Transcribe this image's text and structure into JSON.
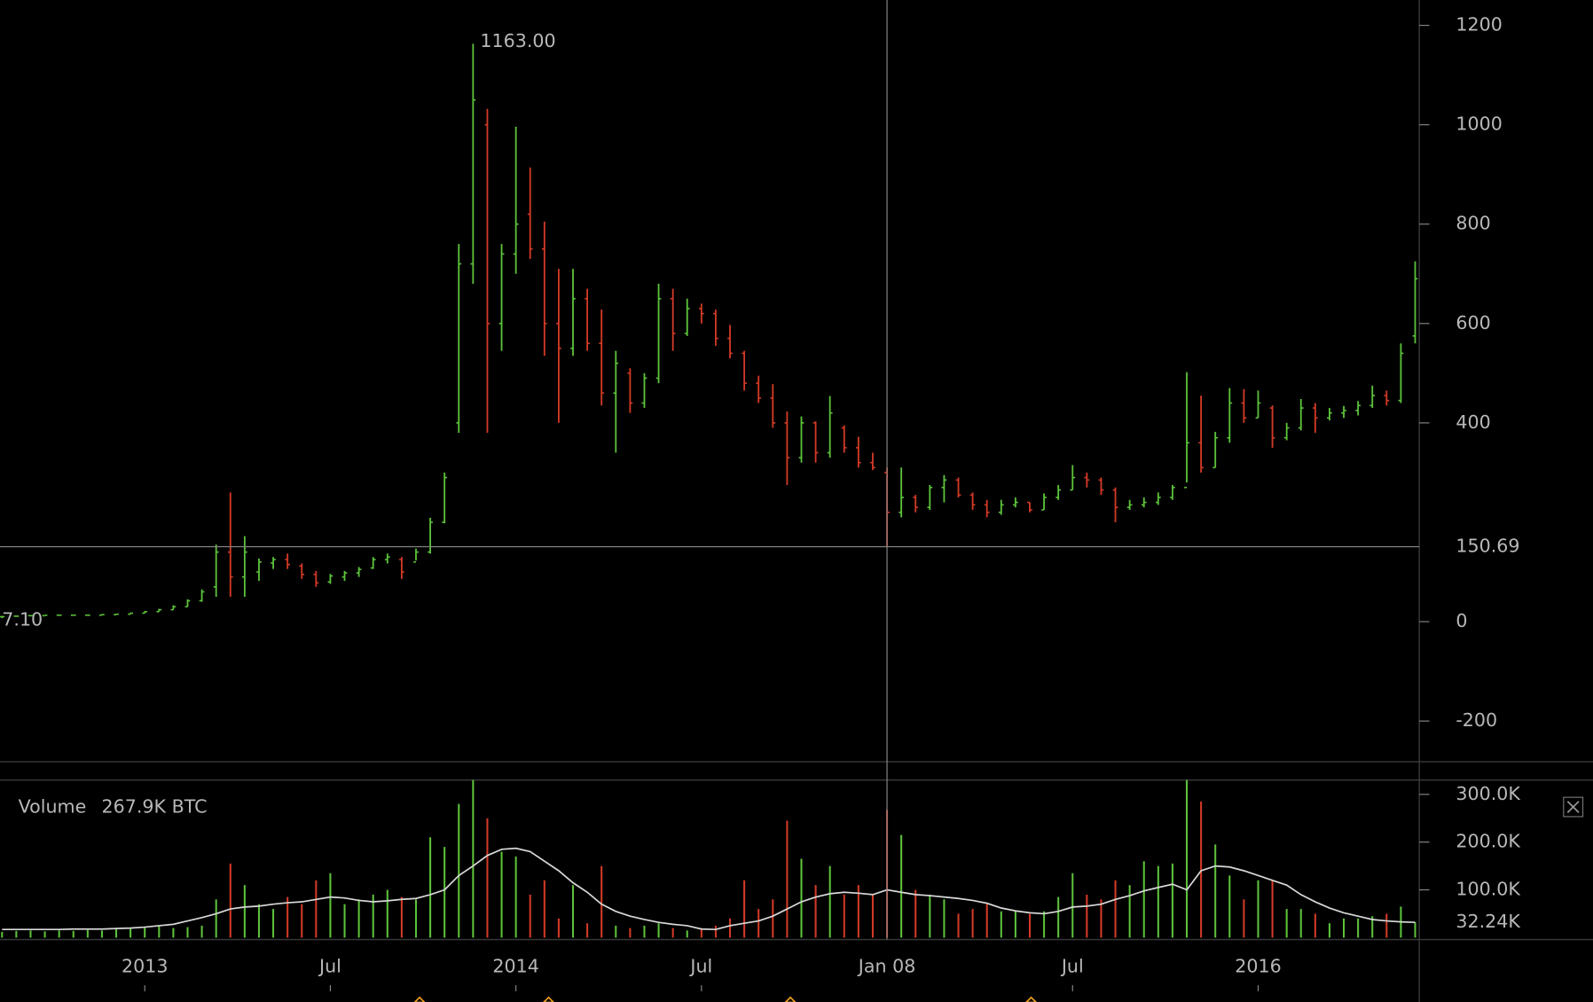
{
  "chart_data": {
    "type": "ohlc",
    "categories": [
      null,
      null,
      null,
      null,
      null,
      null,
      null,
      null,
      null,
      null,
      "2013",
      null,
      null,
      null,
      null,
      null,
      null,
      null,
      null,
      null,
      null,
      null,
      null,
      "Jul",
      null,
      null,
      null,
      null,
      null,
      null,
      null,
      null,
      null,
      null,
      null,
      null,
      "2014",
      null,
      null,
      null,
      null,
      null,
      null,
      null,
      null,
      null,
      null,
      null,
      null,
      "Jul",
      null,
      null,
      null,
      null,
      null,
      null,
      null,
      null,
      null,
      null,
      null,
      null,
      null,
      null,
      null,
      null,
      null,
      null,
      null,
      null,
      null,
      null,
      null,
      null,
      null,
      "Jul",
      null,
      null,
      null,
      null,
      null,
      null,
      null,
      null,
      null,
      null,
      null,
      null,
      "2016",
      null,
      null,
      null,
      null,
      null,
      null,
      null,
      null,
      null,
      null,
      null
    ],
    "open": [
      10,
      11,
      12,
      12,
      13,
      13,
      13,
      13,
      14,
      15,
      17,
      20,
      24,
      30,
      42,
      70,
      140,
      90,
      100,
      118,
      125,
      112,
      95,
      80,
      90,
      98,
      108,
      125,
      125,
      120,
      140,
      200,
      400,
      720,
      1000,
      600,
      740,
      820,
      750,
      600,
      550,
      650,
      560,
      460,
      500,
      440,
      490,
      650,
      580,
      630,
      620,
      570,
      540,
      480,
      450,
      400,
      330,
      400,
      340,
      390,
      350,
      320,
      300,
      220,
      250,
      230,
      270,
      285,
      255,
      235,
      220,
      235,
      240,
      225,
      250,
      265,
      290,
      285,
      265,
      230,
      235,
      240,
      250,
      270,
      360,
      310,
      370,
      440,
      410,
      430,
      370,
      390,
      430,
      410,
      420,
      425,
      435,
      455,
      445,
      575
    ],
    "high": [
      11,
      12,
      13,
      13,
      14,
      14,
      14,
      15,
      16,
      18,
      21,
      26,
      33,
      45,
      65,
      155,
      260,
      172,
      127,
      130,
      137,
      117,
      102,
      96,
      102,
      110,
      130,
      137,
      130,
      147,
      209,
      300,
      760,
      1163,
      1032,
      760,
      996,
      914,
      805,
      710,
      710,
      670,
      628,
      545,
      510,
      500,
      680,
      670,
      650,
      640,
      628,
      597,
      545,
      495,
      478,
      423,
      413,
      403,
      454,
      395,
      372,
      340,
      310,
      310,
      255,
      275,
      295,
      290,
      260,
      245,
      245,
      250,
      240,
      258,
      275,
      315,
      300,
      290,
      270,
      245,
      250,
      260,
      275,
      502,
      455,
      382,
      470,
      468,
      465,
      435,
      400,
      448,
      440,
      430,
      434,
      444,
      475,
      465,
      560,
      725
    ],
    "low": [
      7.1,
      10,
      11,
      12,
      12,
      13,
      12,
      13,
      14,
      15,
      17,
      20,
      24,
      30,
      40,
      50,
      50,
      50,
      82,
      106,
      106,
      86,
      70,
      76,
      82,
      90,
      106,
      117,
      86,
      123,
      137,
      198,
      380,
      680,
      380,
      545,
      700,
      730,
      535,
      400,
      535,
      545,
      435,
      340,
      420,
      430,
      480,
      545,
      575,
      600,
      555,
      530,
      465,
      440,
      390,
      275,
      320,
      320,
      330,
      340,
      310,
      305,
      152,
      210,
      220,
      225,
      240,
      250,
      225,
      210,
      215,
      230,
      220,
      225,
      245,
      265,
      270,
      255,
      200,
      225,
      230,
      235,
      245,
      280,
      300,
      310,
      360,
      400,
      410,
      350,
      365,
      385,
      380,
      405,
      410,
      415,
      430,
      435,
      440,
      560
    ],
    "close": [
      10,
      11,
      12,
      13,
      13,
      13,
      13,
      14,
      15,
      17,
      20,
      24,
      30,
      42,
      60,
      140,
      90,
      140,
      120,
      125,
      115,
      95,
      78,
      92,
      98,
      105,
      125,
      130,
      100,
      140,
      200,
      290,
      720,
      1050,
      600,
      740,
      800,
      750,
      600,
      550,
      650,
      560,
      460,
      520,
      440,
      490,
      650,
      580,
      630,
      620,
      570,
      540,
      480,
      450,
      400,
      330,
      400,
      340,
      420,
      350,
      320,
      310,
      220,
      250,
      230,
      270,
      285,
      255,
      235,
      220,
      235,
      240,
      225,
      250,
      265,
      290,
      285,
      265,
      230,
      235,
      240,
      250,
      270,
      360,
      310,
      370,
      440,
      410,
      440,
      370,
      390,
      430,
      410,
      420,
      425,
      435,
      455,
      445,
      540,
      690
    ],
    "high_labels": [
      null,
      null,
      null,
      null,
      null,
      null,
      null,
      null,
      null,
      null,
      null,
      null,
      null,
      null,
      null,
      null,
      null,
      null,
      null,
      null,
      null,
      null,
      null,
      null,
      null,
      null,
      null,
      null,
      null,
      null,
      null,
      null,
      null,
      "1163.00",
      null,
      null,
      null,
      null,
      null,
      null,
      null,
      null,
      null,
      null,
      null,
      null,
      null,
      null,
      null,
      null,
      null,
      null,
      null,
      null,
      null,
      null,
      null,
      null,
      null,
      null,
      null,
      null,
      null,
      null,
      null,
      null,
      null,
      null,
      null,
      null,
      null,
      null,
      null,
      null,
      null,
      null,
      null,
      null,
      null,
      null,
      null,
      null,
      null,
      null,
      null,
      null,
      null,
      null,
      null,
      null,
      null,
      null,
      null,
      null,
      null,
      null,
      null,
      null,
      null,
      null
    ],
    "low_labels": [
      "7.10",
      null,
      null,
      null,
      null,
      null,
      null,
      null,
      null,
      null,
      null,
      null,
      null,
      null,
      null,
      null,
      null,
      null,
      null,
      null,
      null,
      null,
      null,
      null,
      null,
      null,
      null,
      null,
      null,
      null,
      null,
      null,
      null,
      null,
      null,
      null,
      null,
      null,
      null,
      null,
      null,
      null,
      null,
      null,
      null,
      null,
      null,
      null,
      null,
      null,
      null,
      null,
      null,
      null,
      null,
      null,
      null,
      null,
      null,
      null,
      null,
      null,
      null,
      null,
      null,
      null,
      null,
      null,
      null,
      null,
      null,
      null,
      null,
      null,
      null,
      null,
      null,
      null,
      null,
      null,
      null,
      null,
      null,
      null,
      null,
      null,
      null,
      null,
      null,
      null,
      null,
      null,
      null,
      null,
      null,
      null,
      null,
      null,
      null,
      null
    ],
    "up_color": "#5cc23a",
    "down_color": "#d33a26",
    "ylim": [
      -282,
      1251
    ],
    "yticks": [
      -200,
      0,
      400,
      600,
      800,
      1000,
      1200
    ],
    "crosshair": {
      "price": 150.69,
      "time": "Jan 08"
    },
    "volume": {
      "name": "Volume",
      "values": [
        12000,
        14000,
        15000,
        13000,
        15000,
        14000,
        16000,
        15000,
        18000,
        20000,
        22000,
        25000,
        20000,
        22000,
        25000,
        80000,
        155000,
        110000,
        70000,
        60000,
        85000,
        70000,
        120000,
        135000,
        70000,
        80000,
        90000,
        100000,
        85000,
        80000,
        210000,
        190000,
        280000,
        330000,
        250000,
        180000,
        170000,
        90000,
        120000,
        40000,
        110000,
        30000,
        150000,
        25000,
        20000,
        25000,
        30000,
        20000,
        15000,
        20000,
        25000,
        40000,
        120000,
        60000,
        80000,
        245000,
        165000,
        110000,
        150000,
        90000,
        110000,
        90000,
        267900,
        215000,
        100000,
        90000,
        80000,
        50000,
        60000,
        70000,
        55000,
        55000,
        50000,
        55000,
        85000,
        135000,
        90000,
        80000,
        120000,
        110000,
        160000,
        150000,
        155000,
        330000,
        285000,
        195000,
        130000,
        80000,
        120000,
        120000,
        60000,
        60000,
        50000,
        30000,
        40000,
        40000,
        45000,
        50000,
        65000,
        32240
      ],
      "value_labels": [
        null,
        null,
        null,
        null,
        null,
        null,
        null,
        null,
        null,
        null,
        null,
        null,
        null,
        null,
        null,
        null,
        null,
        null,
        null,
        null,
        null,
        null,
        null,
        null,
        null,
        null,
        null,
        null,
        null,
        null,
        null,
        null,
        null,
        null,
        null,
        null,
        null,
        null,
        null,
        null,
        null,
        null,
        null,
        null,
        null,
        null,
        null,
        null,
        null,
        null,
        null,
        null,
        null,
        null,
        null,
        null,
        null,
        null,
        null,
        null,
        null,
        null,
        "267.9K BTC",
        null,
        null,
        null,
        null,
        null,
        null,
        null,
        null,
        null,
        null,
        null,
        null,
        null,
        null,
        null,
        null,
        null,
        null,
        null,
        null,
        null,
        null,
        null,
        null,
        null,
        null,
        null,
        null,
        null,
        null,
        null,
        null,
        null,
        null,
        null,
        null,
        "32.24K"
      ],
      "ma": [
        17000,
        17000,
        17000,
        17000,
        17000,
        18000,
        18000,
        18000,
        19000,
        20000,
        22000,
        25000,
        28000,
        35000,
        42000,
        50000,
        60000,
        64000,
        66000,
        70000,
        73000,
        75000,
        80000,
        85000,
        83000,
        78000,
        75000,
        77000,
        80000,
        82000,
        90000,
        100000,
        130000,
        150000,
        172000,
        185000,
        187000,
        180000,
        160000,
        140000,
        115000,
        95000,
        70000,
        55000,
        45000,
        38000,
        32000,
        28000,
        25000,
        18000,
        17000,
        25000,
        30000,
        35000,
        45000,
        60000,
        75000,
        85000,
        92000,
        95000,
        93000,
        90000,
        100000,
        95000,
        90000,
        88000,
        85000,
        82000,
        78000,
        72000,
        62000,
        56000,
        52000,
        50000,
        55000,
        64000,
        66000,
        70000,
        80000,
        88000,
        98000,
        105000,
        112000,
        100000,
        140000,
        150000,
        148000,
        140000,
        130000,
        120000,
        110000,
        90000,
        75000,
        62000,
        52000,
        45000,
        38000,
        35000,
        33000,
        32000
      ],
      "ma_color": "#d8d8d8",
      "ylim": [
        -4000,
        330000
      ],
      "yticks": [
        {
          "value": 100000,
          "label": "100.0K"
        },
        {
          "value": 200000,
          "label": "200.0K"
        },
        {
          "value": 300000,
          "label": "300.0K"
        }
      ]
    }
  }
}
